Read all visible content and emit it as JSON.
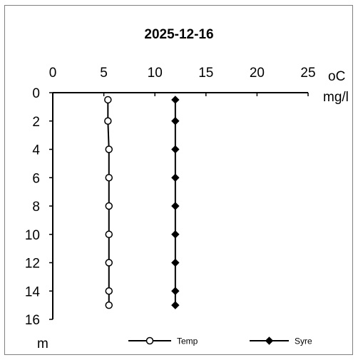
{
  "chart_data": {
    "type": "line",
    "title": "2025-12-16",
    "x_axis": {
      "range": [
        0,
        25
      ],
      "ticks": [
        0,
        5,
        10,
        15,
        20,
        25
      ],
      "unit_label_top": "oC",
      "unit_label_bottom": "mg/l",
      "position": "top"
    },
    "y_axis": {
      "range": [
        0,
        16
      ],
      "ticks": [
        0,
        2,
        4,
        6,
        8,
        10,
        12,
        14,
        16
      ],
      "unit_label": "m",
      "inverted": true
    },
    "series": [
      {
        "name": "Temp",
        "marker": "circle-open",
        "color": "#000000",
        "points": [
          [
            5.4,
            0.5
          ],
          [
            5.4,
            2
          ],
          [
            5.5,
            4
          ],
          [
            5.5,
            6
          ],
          [
            5.5,
            8
          ],
          [
            5.5,
            10
          ],
          [
            5.5,
            12
          ],
          [
            5.5,
            14
          ],
          [
            5.5,
            15
          ]
        ]
      },
      {
        "name": "Syre",
        "marker": "diamond-filled",
        "color": "#000000",
        "points": [
          [
            12,
            0.5
          ],
          [
            12,
            2
          ],
          [
            12,
            4
          ],
          [
            12,
            6
          ],
          [
            12,
            8
          ],
          [
            12,
            10
          ],
          [
            12,
            12
          ],
          [
            12,
            14
          ],
          [
            12,
            15
          ]
        ]
      }
    ],
    "legend_placement": "bottom",
    "grid": false
  }
}
